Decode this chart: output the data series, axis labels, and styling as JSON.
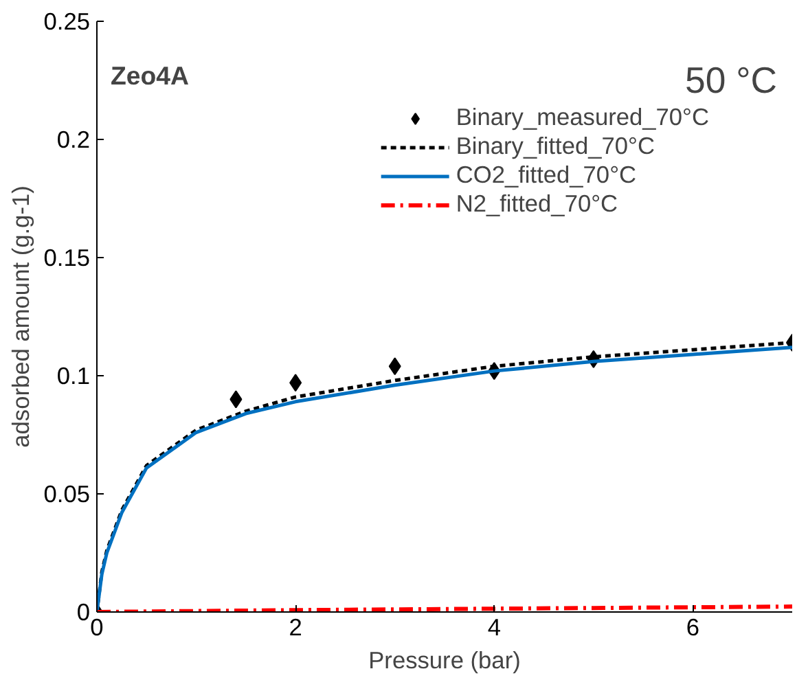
{
  "chart_data": {
    "type": "line",
    "xlabel": "Pressure (bar)",
    "ylabel": "adsorbed amount (g.g-1)",
    "annotations": [
      "Zeo4A",
      "50 °C"
    ],
    "xlim": [
      0,
      7
    ],
    "xticks": [
      0,
      2,
      4,
      6
    ],
    "ylim": [
      0,
      0.25
    ],
    "yticks": [
      0,
      0.05,
      0.1,
      0.15,
      0.2,
      0.25
    ],
    "grid": false,
    "legend": "top right",
    "series": [
      {
        "name": "Binary_measured_70°C",
        "type": "scatter",
        "marker": "diamond",
        "color": "#000000",
        "x": [
          0,
          1.4,
          2,
          3,
          4,
          5,
          7
        ],
        "values": [
          0,
          0.09,
          0.097,
          0.104,
          0.102,
          0.107,
          0.114
        ]
      },
      {
        "name": "Binary_fitted_70°C",
        "line_style": "dashed",
        "color": "#000000",
        "x": [
          0,
          0.05,
          0.1,
          0.25,
          0.5,
          1,
          1.5,
          2,
          3,
          4,
          5,
          6,
          7
        ],
        "values": [
          0,
          0.017,
          0.026,
          0.043,
          0.062,
          0.077,
          0.085,
          0.091,
          0.098,
          0.104,
          0.108,
          0.111,
          0.114
        ]
      },
      {
        "name": "CO2_fitted_70°C",
        "line_style": "solid",
        "color": "#0070c0",
        "x": [
          0,
          0.05,
          0.1,
          0.25,
          0.5,
          1,
          1.5,
          2,
          3,
          4,
          5,
          6,
          7
        ],
        "values": [
          0,
          0.016,
          0.025,
          0.042,
          0.061,
          0.076,
          0.084,
          0.089,
          0.096,
          0.102,
          0.106,
          0.109,
          0.112
        ]
      },
      {
        "name": "N2_fitted_70°C",
        "line_style": "dashdot",
        "color": "#ff0000",
        "x": [
          0,
          1,
          2,
          3,
          4,
          5,
          6,
          7
        ],
        "values": [
          0,
          0.0004,
          0.0008,
          0.0011,
          0.0014,
          0.0017,
          0.002,
          0.0023
        ]
      }
    ]
  }
}
